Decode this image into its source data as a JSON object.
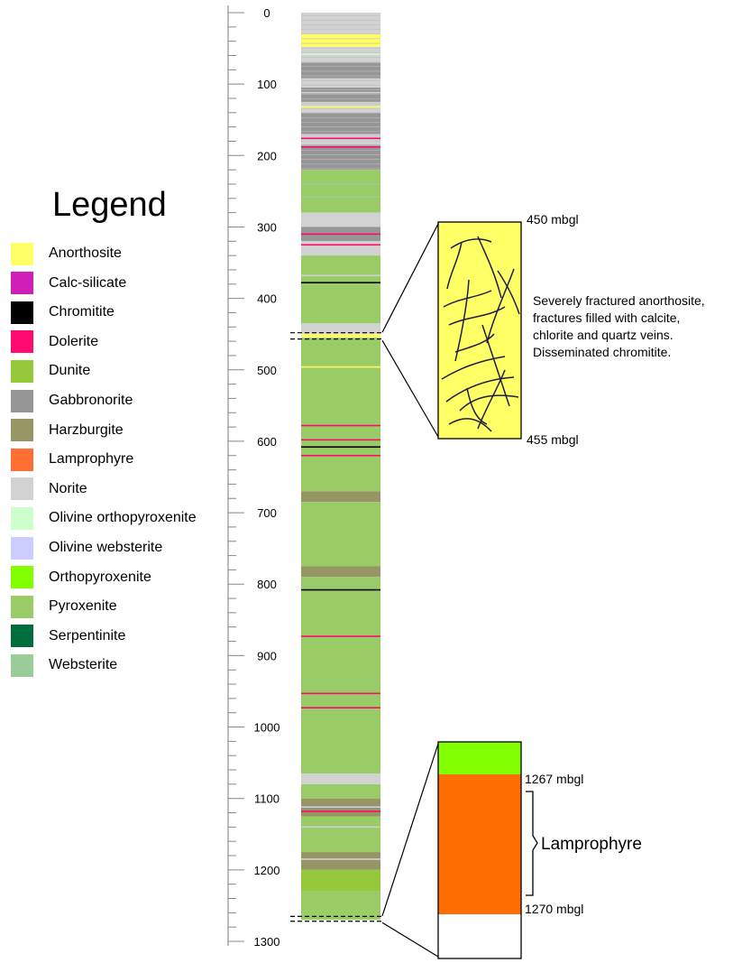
{
  "legend": {
    "title": "Legend",
    "items": [
      {
        "label": "Anorthosite",
        "color": "#ffff66"
      },
      {
        "label": "Calc-silicate",
        "color": "#d21eb9"
      },
      {
        "label": "Chromitite",
        "color": "#000000"
      },
      {
        "label": "Dolerite",
        "color": "#ff0a6e"
      },
      {
        "label": "Dunite",
        "color": "#96c83c"
      },
      {
        "label": "Gabbronorite",
        "color": "#969696"
      },
      {
        "label": "Harzburgite",
        "color": "#969664"
      },
      {
        "label": "Lamprophyre",
        "color": "#ff6e32"
      },
      {
        "label": "Norite",
        "color": "#d2d2d2"
      },
      {
        "label": "Olivine orthopyroxenite",
        "color": "#ccffcc"
      },
      {
        "label": "Olivine websterite",
        "color": "#ccccff"
      },
      {
        "label": "Orthopyroxenite",
        "color": "#82ff00"
      },
      {
        "label": "Pyroxenite",
        "color": "#99cc66"
      },
      {
        "label": "Serpentinite",
        "color": "#006e3c"
      },
      {
        "label": "Websterite",
        "color": "#99cc99"
      }
    ]
  },
  "depth_axis": {
    "min": 0,
    "max": 1300,
    "tick_labels": [
      "0",
      "100",
      "200",
      "300",
      "400",
      "500",
      "600",
      "700",
      "800",
      "900",
      "1000",
      "1100",
      "1200",
      "1300"
    ]
  },
  "column_layers": [
    {
      "top": 0,
      "bottom": 30,
      "rock": "Norite"
    },
    {
      "top": 30,
      "bottom": 48,
      "rock": "Anorthosite"
    },
    {
      "top": 48,
      "bottom": 70,
      "rock": "Norite"
    },
    {
      "top": 70,
      "bottom": 92,
      "rock": "Gabbronorite"
    },
    {
      "top": 92,
      "bottom": 105,
      "rock": "Norite"
    },
    {
      "top": 105,
      "bottom": 125,
      "rock": "Gabbronorite"
    },
    {
      "top": 125,
      "bottom": 140,
      "rock": "Norite"
    },
    {
      "top": 140,
      "bottom": 170,
      "rock": "Gabbronorite"
    },
    {
      "top": 170,
      "bottom": 185,
      "rock": "Norite"
    },
    {
      "top": 185,
      "bottom": 220,
      "rock": "Gabbronorite"
    },
    {
      "top": 220,
      "bottom": 280,
      "rock": "Pyroxenite"
    },
    {
      "top": 280,
      "bottom": 300,
      "rock": "Norite"
    },
    {
      "top": 300,
      "bottom": 320,
      "rock": "Gabbronorite"
    },
    {
      "top": 320,
      "bottom": 340,
      "rock": "Norite"
    },
    {
      "top": 340,
      "bottom": 435,
      "rock": "Pyroxenite"
    },
    {
      "top": 435,
      "bottom": 450,
      "rock": "Norite"
    },
    {
      "top": 450,
      "bottom": 455,
      "rock": "Anorthosite"
    },
    {
      "top": 455,
      "bottom": 670,
      "rock": "Pyroxenite"
    },
    {
      "top": 670,
      "bottom": 685,
      "rock": "Harzburgite"
    },
    {
      "top": 685,
      "bottom": 775,
      "rock": "Pyroxenite"
    },
    {
      "top": 775,
      "bottom": 790,
      "rock": "Harzburgite"
    },
    {
      "top": 790,
      "bottom": 1065,
      "rock": "Pyroxenite"
    },
    {
      "top": 1065,
      "bottom": 1080,
      "rock": "Norite"
    },
    {
      "top": 1080,
      "bottom": 1100,
      "rock": "Pyroxenite"
    },
    {
      "top": 1100,
      "bottom": 1125,
      "rock": "Harzburgite"
    },
    {
      "top": 1125,
      "bottom": 1175,
      "rock": "Pyroxenite"
    },
    {
      "top": 1175,
      "bottom": 1200,
      "rock": "Harzburgite"
    },
    {
      "top": 1200,
      "bottom": 1230,
      "rock": "Dunite"
    },
    {
      "top": 1230,
      "bottom": 1262,
      "rock": "Pyroxenite"
    },
    {
      "top": 1262,
      "bottom": 1270,
      "rock": "Pyroxenite"
    }
  ],
  "column_thin_bands": [
    {
      "depth": 58,
      "rock": "Olivine orthopyroxenite"
    },
    {
      "depth": 112,
      "rock": "Norite"
    },
    {
      "depth": 132,
      "rock": "Anorthosite"
    },
    {
      "depth": 176,
      "rock": "Dolerite"
    },
    {
      "depth": 188,
      "rock": "Dolerite"
    },
    {
      "depth": 240,
      "rock": "Websterite"
    },
    {
      "depth": 258,
      "rock": "Websterite"
    },
    {
      "depth": 310,
      "rock": "Dolerite"
    },
    {
      "depth": 325,
      "rock": "Dolerite"
    },
    {
      "depth": 368,
      "rock": "Norite"
    },
    {
      "depth": 378,
      "rock": "Chromitite"
    },
    {
      "depth": 496,
      "rock": "Anorthosite"
    },
    {
      "depth": 578,
      "rock": "Dolerite"
    },
    {
      "depth": 598,
      "rock": "Dolerite"
    },
    {
      "depth": 608,
      "rock": "Chromitite"
    },
    {
      "depth": 620,
      "rock": "Dolerite"
    },
    {
      "depth": 808,
      "rock": "Chromitite"
    },
    {
      "depth": 873,
      "rock": "Dolerite"
    },
    {
      "depth": 953,
      "rock": "Dolerite"
    },
    {
      "depth": 973,
      "rock": "Dolerite"
    },
    {
      "depth": 1112,
      "rock": "Olivine websterite"
    },
    {
      "depth": 1118,
      "rock": "Dolerite"
    },
    {
      "depth": 1140,
      "rock": "Norite"
    },
    {
      "depth": 1185,
      "rock": "Norite"
    }
  ],
  "detail_upper": {
    "top_label": "450 mbgl",
    "bottom_label": "455 mbgl",
    "description": [
      "Severely fractured anorthosite,",
      "fractures filled with calcite,",
      "chlorite and quartz veins.",
      "Disseminated chromitite."
    ]
  },
  "detail_lower": {
    "top_label": "1267 mbgl",
    "bottom_label": "1270 mbgl",
    "bracket_label": "Lamprophyre"
  }
}
